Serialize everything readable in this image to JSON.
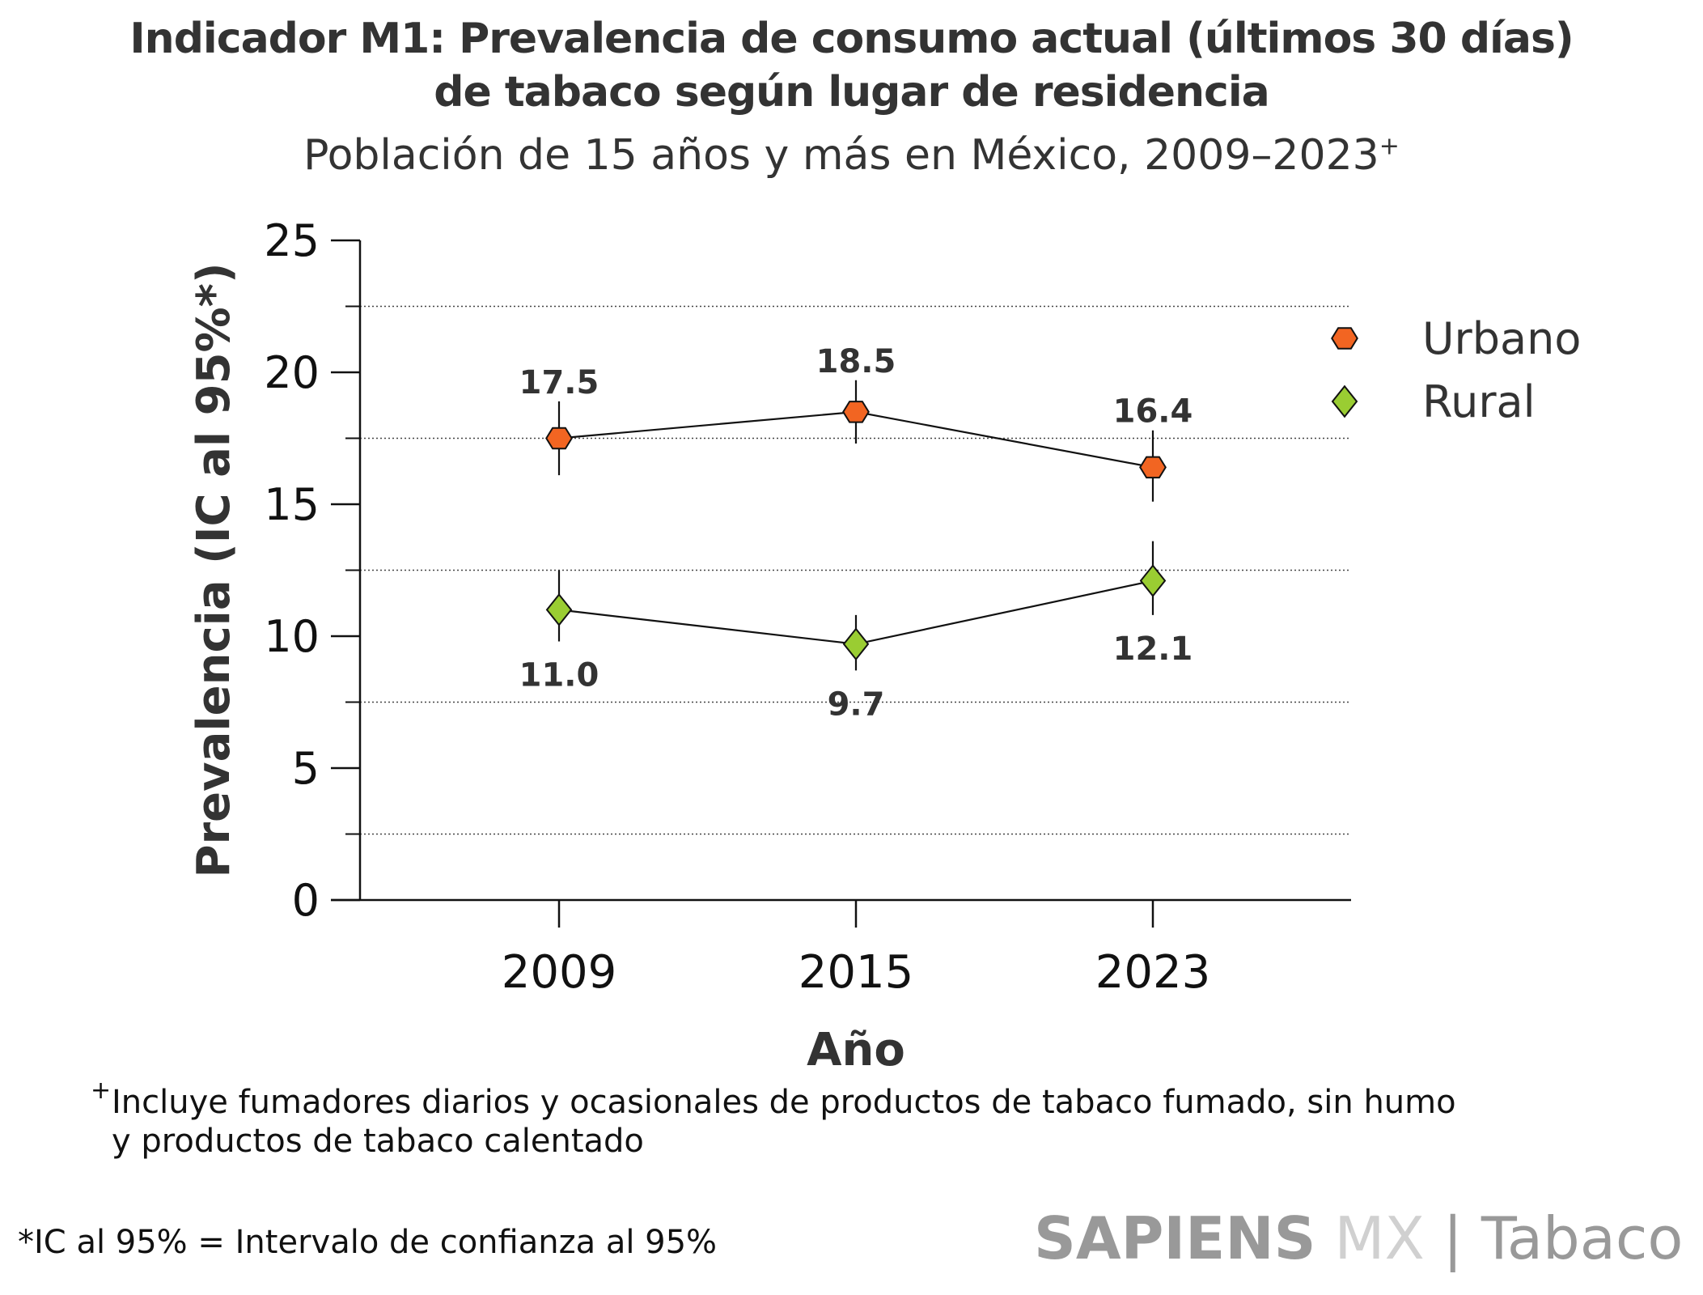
{
  "header": {
    "title_line1": "Indicador M1: Prevalencia de consumo actual (últimos 30 días)",
    "title_line2": "de tabaco según lugar de residencia",
    "subtitle": "Población de 15 años y más en México, 2009–2023",
    "subtitle_mark": "+"
  },
  "chart_data": {
    "type": "line",
    "title": "Indicador M1: Prevalencia de consumo actual (últimos 30 días) de tabaco según lugar de residencia",
    "subtitle": "Población de 15 años y más en México, 2009–2023+",
    "xlabel": "Año",
    "ylabel": "Prevalencia (IC al 95%*)",
    "categories": [
      "2009",
      "2015",
      "2023"
    ],
    "ylim": [
      0,
      25
    ],
    "yticks": [
      0,
      5,
      10,
      15,
      20,
      25
    ],
    "ytick_labels": [
      "0",
      "5",
      "10",
      "15",
      "20",
      "25"
    ],
    "minor_gridlines": [
      2.5,
      7.5,
      12.5,
      17.5,
      22.5
    ],
    "grid": "dotted horizontal at minor ticks",
    "legend_position": "top-right",
    "series": [
      {
        "name": "Urbano",
        "marker": "hexagon",
        "color": "#f26522",
        "values": [
          17.5,
          18.5,
          16.4
        ],
        "value_labels": [
          "17.5",
          "18.5",
          "16.4"
        ],
        "label_position": "above",
        "ci_lower": [
          16.1,
          17.3,
          15.1
        ],
        "ci_upper": [
          18.9,
          19.7,
          17.8
        ]
      },
      {
        "name": "Rural",
        "marker": "diamond",
        "color": "#9acd32",
        "values": [
          11.0,
          9.7,
          12.1
        ],
        "value_labels": [
          "11.0",
          "9.7",
          "12.1"
        ],
        "label_position": "below",
        "ci_lower": [
          9.8,
          8.7,
          10.8
        ],
        "ci_upper": [
          12.5,
          10.8,
          13.6
        ]
      }
    ]
  },
  "footer": {
    "note_mark": "+",
    "note_line1": "Incluye fumadores diarios y ocasionales de productos de tabaco fumado, sin humo",
    "note_line2": "y productos de tabaco calentado",
    "ci_note": "*IC al 95% = Intervalo de confianza al 95%",
    "brand_bold": "SAPIENS",
    "brand_light": " MX",
    "brand_tail": " | Tabaco"
  }
}
